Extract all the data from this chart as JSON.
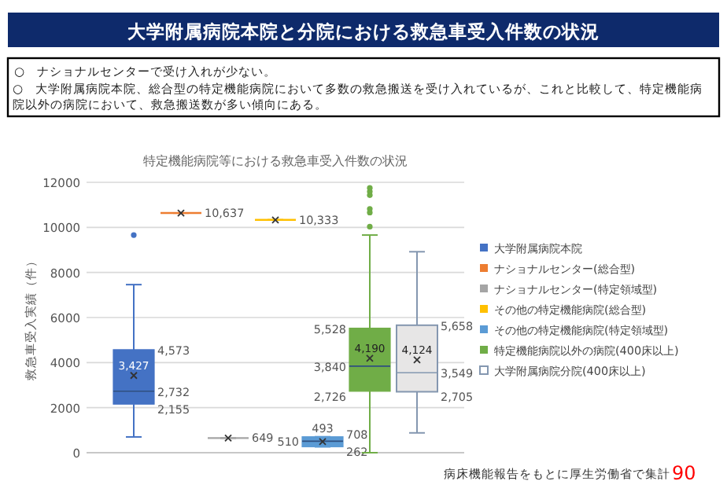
{
  "chart_data": {
    "type": "box",
    "title": "大学附属病院本院と分院における救急車受入件数の状況",
    "subtitle": "特定機能病院等における救急車受入件数の状況",
    "ylabel": "救急車受入実績（件）",
    "annotations": [
      "○　ナショナルセンターで受け入れが少ない。",
      "○　大学附属病院本院、総合型の特定機能病院において多数の救急搬送を受け入れているが、これと比較して、特定機能病院以外の病院において、救急搬送数が多い傾向にある。",
      "病床機能報告をもとに厚生労働省で集計",
      "90"
    ],
    "categories": [
      null
    ],
    "ylim": [
      0,
      12000
    ],
    "yticks": [
      0,
      2000,
      4000,
      6000,
      8000,
      10000,
      12000
    ],
    "grid": "y",
    "legend": "right",
    "series": [
      {
        "name": "大学附属病院本院",
        "color": "#4472c4",
        "boxes": [
          {
            "low": 700,
            "q1": 2155,
            "median": 2732,
            "q3": 4573,
            "high": 7460,
            "mean": 3427,
            "outliers": [
              9660
            ]
          }
        ],
        "value_labels": [
          [
            "4,573",
            "2,732",
            "2,155",
            "3,427"
          ]
        ]
      },
      {
        "name": "ナショナルセンター(総合型)",
        "color": "#ed7d31",
        "boxes": [
          {
            "low": 10637,
            "q1": 10637,
            "median": 10637,
            "q3": 10637,
            "high": 10637,
            "mean": 10637
          }
        ],
        "value_labels": [
          [
            "10,637"
          ]
        ]
      },
      {
        "name": "ナショナルセンター(特定領域型)",
        "color": "#a5a5a5",
        "boxes": [
          {
            "low": 649,
            "q1": 649,
            "median": 649,
            "q3": 649,
            "high": 649,
            "mean": 649
          }
        ],
        "value_labels": [
          [
            "649"
          ]
        ]
      },
      {
        "name": "その他の特定機能病院(総合型)",
        "color": "#ffc000",
        "boxes": [
          {
            "low": 10333,
            "q1": 10333,
            "median": 10333,
            "q3": 10333,
            "high": 10333,
            "mean": 10333
          }
        ],
        "value_labels": [
          [
            "10,333"
          ]
        ]
      },
      {
        "name": "その他の特定機能病院(特定領域型)",
        "color": "#5b9bd5",
        "boxes": [
          {
            "low": 262,
            "q1": 262,
            "median": 510,
            "q3": 708,
            "high": 708,
            "mean": 493
          }
        ],
        "value_labels": [
          [
            "708",
            "510",
            "262",
            "493"
          ]
        ]
      },
      {
        "name": "特定機能病院以外の病院(400床以上)",
        "color": "#70ad47",
        "boxes": [
          {
            "low": 0,
            "q1": 2726,
            "median": 3840,
            "q3": 5528,
            "high": 9660,
            "mean": 4190,
            "outliers": [
              10030,
              10660,
              10820,
              11430,
              11590,
              11750
            ]
          }
        ],
        "value_labels": [
          [
            "5,528",
            "3,840",
            "2,726",
            "4,190"
          ]
        ]
      },
      {
        "name": "大学附属病院分院(400床以上)",
        "color": "#8497b0",
        "boxes": [
          {
            "low": 880,
            "q1": 2705,
            "median": 3549,
            "q3": 5658,
            "high": 8920,
            "mean": 4124
          }
        ],
        "value_labels": [
          [
            "5,658",
            "3,549",
            "2,705",
            "4,124"
          ]
        ]
      }
    ]
  }
}
